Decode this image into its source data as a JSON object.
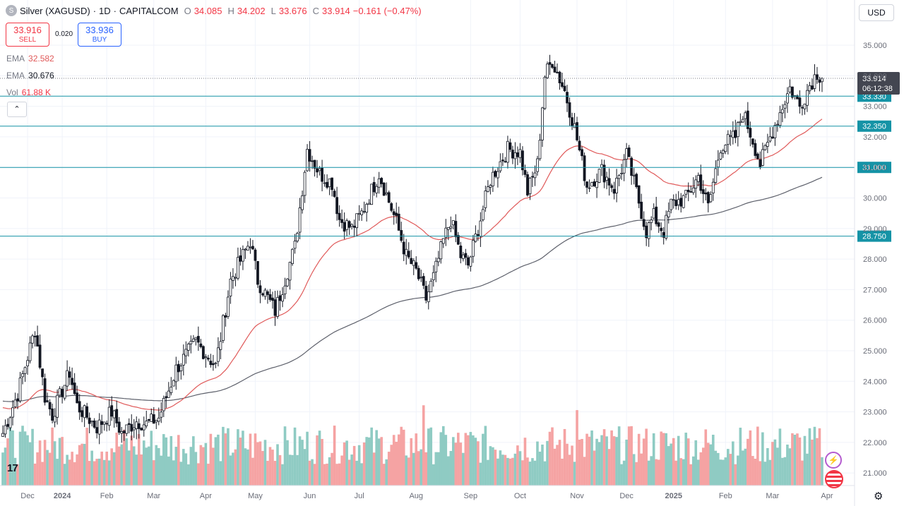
{
  "header": {
    "symbol": "Silver (XAGUSD)",
    "interval": "1D",
    "source": "CAPITALCOM",
    "sep": "·",
    "o_label": "O",
    "o": "34.085",
    "h_label": "H",
    "h": "34.202",
    "l_label": "L",
    "l": "33.676",
    "c_label": "C",
    "c": "33.914",
    "change": "−0.161 (−0.47%)"
  },
  "trade": {
    "sell_price": "33.916",
    "sell_label": "SELL",
    "spread": "0.020",
    "buy_price": "33.936",
    "buy_label": "BUY"
  },
  "indicators": {
    "ema1_label": "EMA",
    "ema1_value": "32.582",
    "ema2_label": "EMA",
    "ema2_value": "30.676",
    "vol_label": "Vol",
    "vol_value": "61.88 K"
  },
  "currency": "USD",
  "last_price_tag": {
    "price": "33.914",
    "countdown": "06:12:38"
  },
  "colors": {
    "up": "#089981",
    "down": "#f23645",
    "ema50": "#e05a5a",
    "ema200": "#5d606b",
    "hline": "#1593a6",
    "vol_up": "#8fcbc3",
    "vol_down": "#f5a3a3"
  },
  "chart_data": {
    "type": "candlestick",
    "title": "Silver (XAGUSD) · 1D · CAPITALCOM",
    "ylim": [
      20.7,
      35.5
    ],
    "y_ticks": [
      "35.000",
      "34.000",
      "33.000",
      "32.000",
      "31.000",
      "30.000",
      "29.000",
      "28.000",
      "27.000",
      "26.000",
      "25.000",
      "24.000",
      "23.000",
      "22.000",
      "21.000"
    ],
    "x_ticks": [
      {
        "label": "Dec",
        "bar": 10
      },
      {
        "label": "2024",
        "bar": 24
      },
      {
        "label": "Feb",
        "bar": 42
      },
      {
        "label": "Mar",
        "bar": 61
      },
      {
        "label": "Apr",
        "bar": 82
      },
      {
        "label": "May",
        "bar": 102
      },
      {
        "label": "Jun",
        "bar": 124
      },
      {
        "label": "Jul",
        "bar": 144
      },
      {
        "label": "Aug",
        "bar": 167
      },
      {
        "label": "Sep",
        "bar": 189
      },
      {
        "label": "Oct",
        "bar": 209
      },
      {
        "label": "Nov",
        "bar": 232
      },
      {
        "label": "Dec",
        "bar": 252
      },
      {
        "label": "2025",
        "bar": 271
      },
      {
        "label": "Feb",
        "bar": 292
      },
      {
        "label": "Mar",
        "bar": 311
      },
      {
        "label": "Apr",
        "bar": 333
      }
    ],
    "bar_count": 336,
    "close_anchors": [
      [
        0,
        22.3
      ],
      [
        6,
        23.6
      ],
      [
        13,
        25.7
      ],
      [
        17,
        23.5
      ],
      [
        20,
        22.9
      ],
      [
        27,
        24.3
      ],
      [
        30,
        23.2
      ],
      [
        38,
        22.5
      ],
      [
        44,
        23.0
      ],
      [
        48,
        22.3
      ],
      [
        54,
        22.7
      ],
      [
        58,
        22.6
      ],
      [
        63,
        22.8
      ],
      [
        70,
        24.4
      ],
      [
        78,
        25.3
      ],
      [
        86,
        24.5
      ],
      [
        92,
        27.3
      ],
      [
        100,
        28.6
      ],
      [
        103,
        27.3
      ],
      [
        110,
        26.3
      ],
      [
        118,
        28.4
      ],
      [
        123,
        31.6
      ],
      [
        128,
        30.8
      ],
      [
        133,
        30.5
      ],
      [
        136,
        29.3
      ],
      [
        141,
        29.0
      ],
      [
        145,
        29.5
      ],
      [
        152,
        30.8
      ],
      [
        159,
        29.2
      ],
      [
        163,
        28.1
      ],
      [
        167,
        27.6
      ],
      [
        171,
        26.7
      ],
      [
        174,
        27.4
      ],
      [
        178,
        28.6
      ],
      [
        181,
        29.3
      ],
      [
        185,
        28.1
      ],
      [
        188,
        27.8
      ],
      [
        192,
        29.0
      ],
      [
        197,
        30.6
      ],
      [
        204,
        31.6
      ],
      [
        209,
        31.5
      ],
      [
        212,
        30.2
      ],
      [
        216,
        31.1
      ],
      [
        219,
        34.0
      ],
      [
        222,
        34.5
      ],
      [
        227,
        33.5
      ],
      [
        231,
        32.3
      ],
      [
        236,
        30.4
      ],
      [
        242,
        30.9
      ],
      [
        247,
        30.3
      ],
      [
        252,
        31.4
      ],
      [
        256,
        30.2
      ],
      [
        260,
        28.9
      ],
      [
        263,
        29.4
      ],
      [
        267,
        28.9
      ],
      [
        270,
        29.8
      ],
      [
        276,
        30.0
      ],
      [
        281,
        30.7
      ],
      [
        285,
        29.7
      ],
      [
        290,
        31.7
      ],
      [
        296,
        32.0
      ],
      [
        299,
        32.8
      ],
      [
        303,
        31.9
      ],
      [
        306,
        31.1
      ],
      [
        311,
        32.2
      ],
      [
        315,
        33.0
      ],
      [
        318,
        33.6
      ],
      [
        322,
        33.0
      ],
      [
        326,
        33.7
      ],
      [
        329,
        34.1
      ],
      [
        331,
        33.914
      ]
    ],
    "ema50_end": 32.582,
    "ema200_end": 30.676,
    "levels": [
      "33.330",
      "32.350",
      "31.000",
      "28.750"
    ],
    "volume_last": "61.88 K"
  }
}
